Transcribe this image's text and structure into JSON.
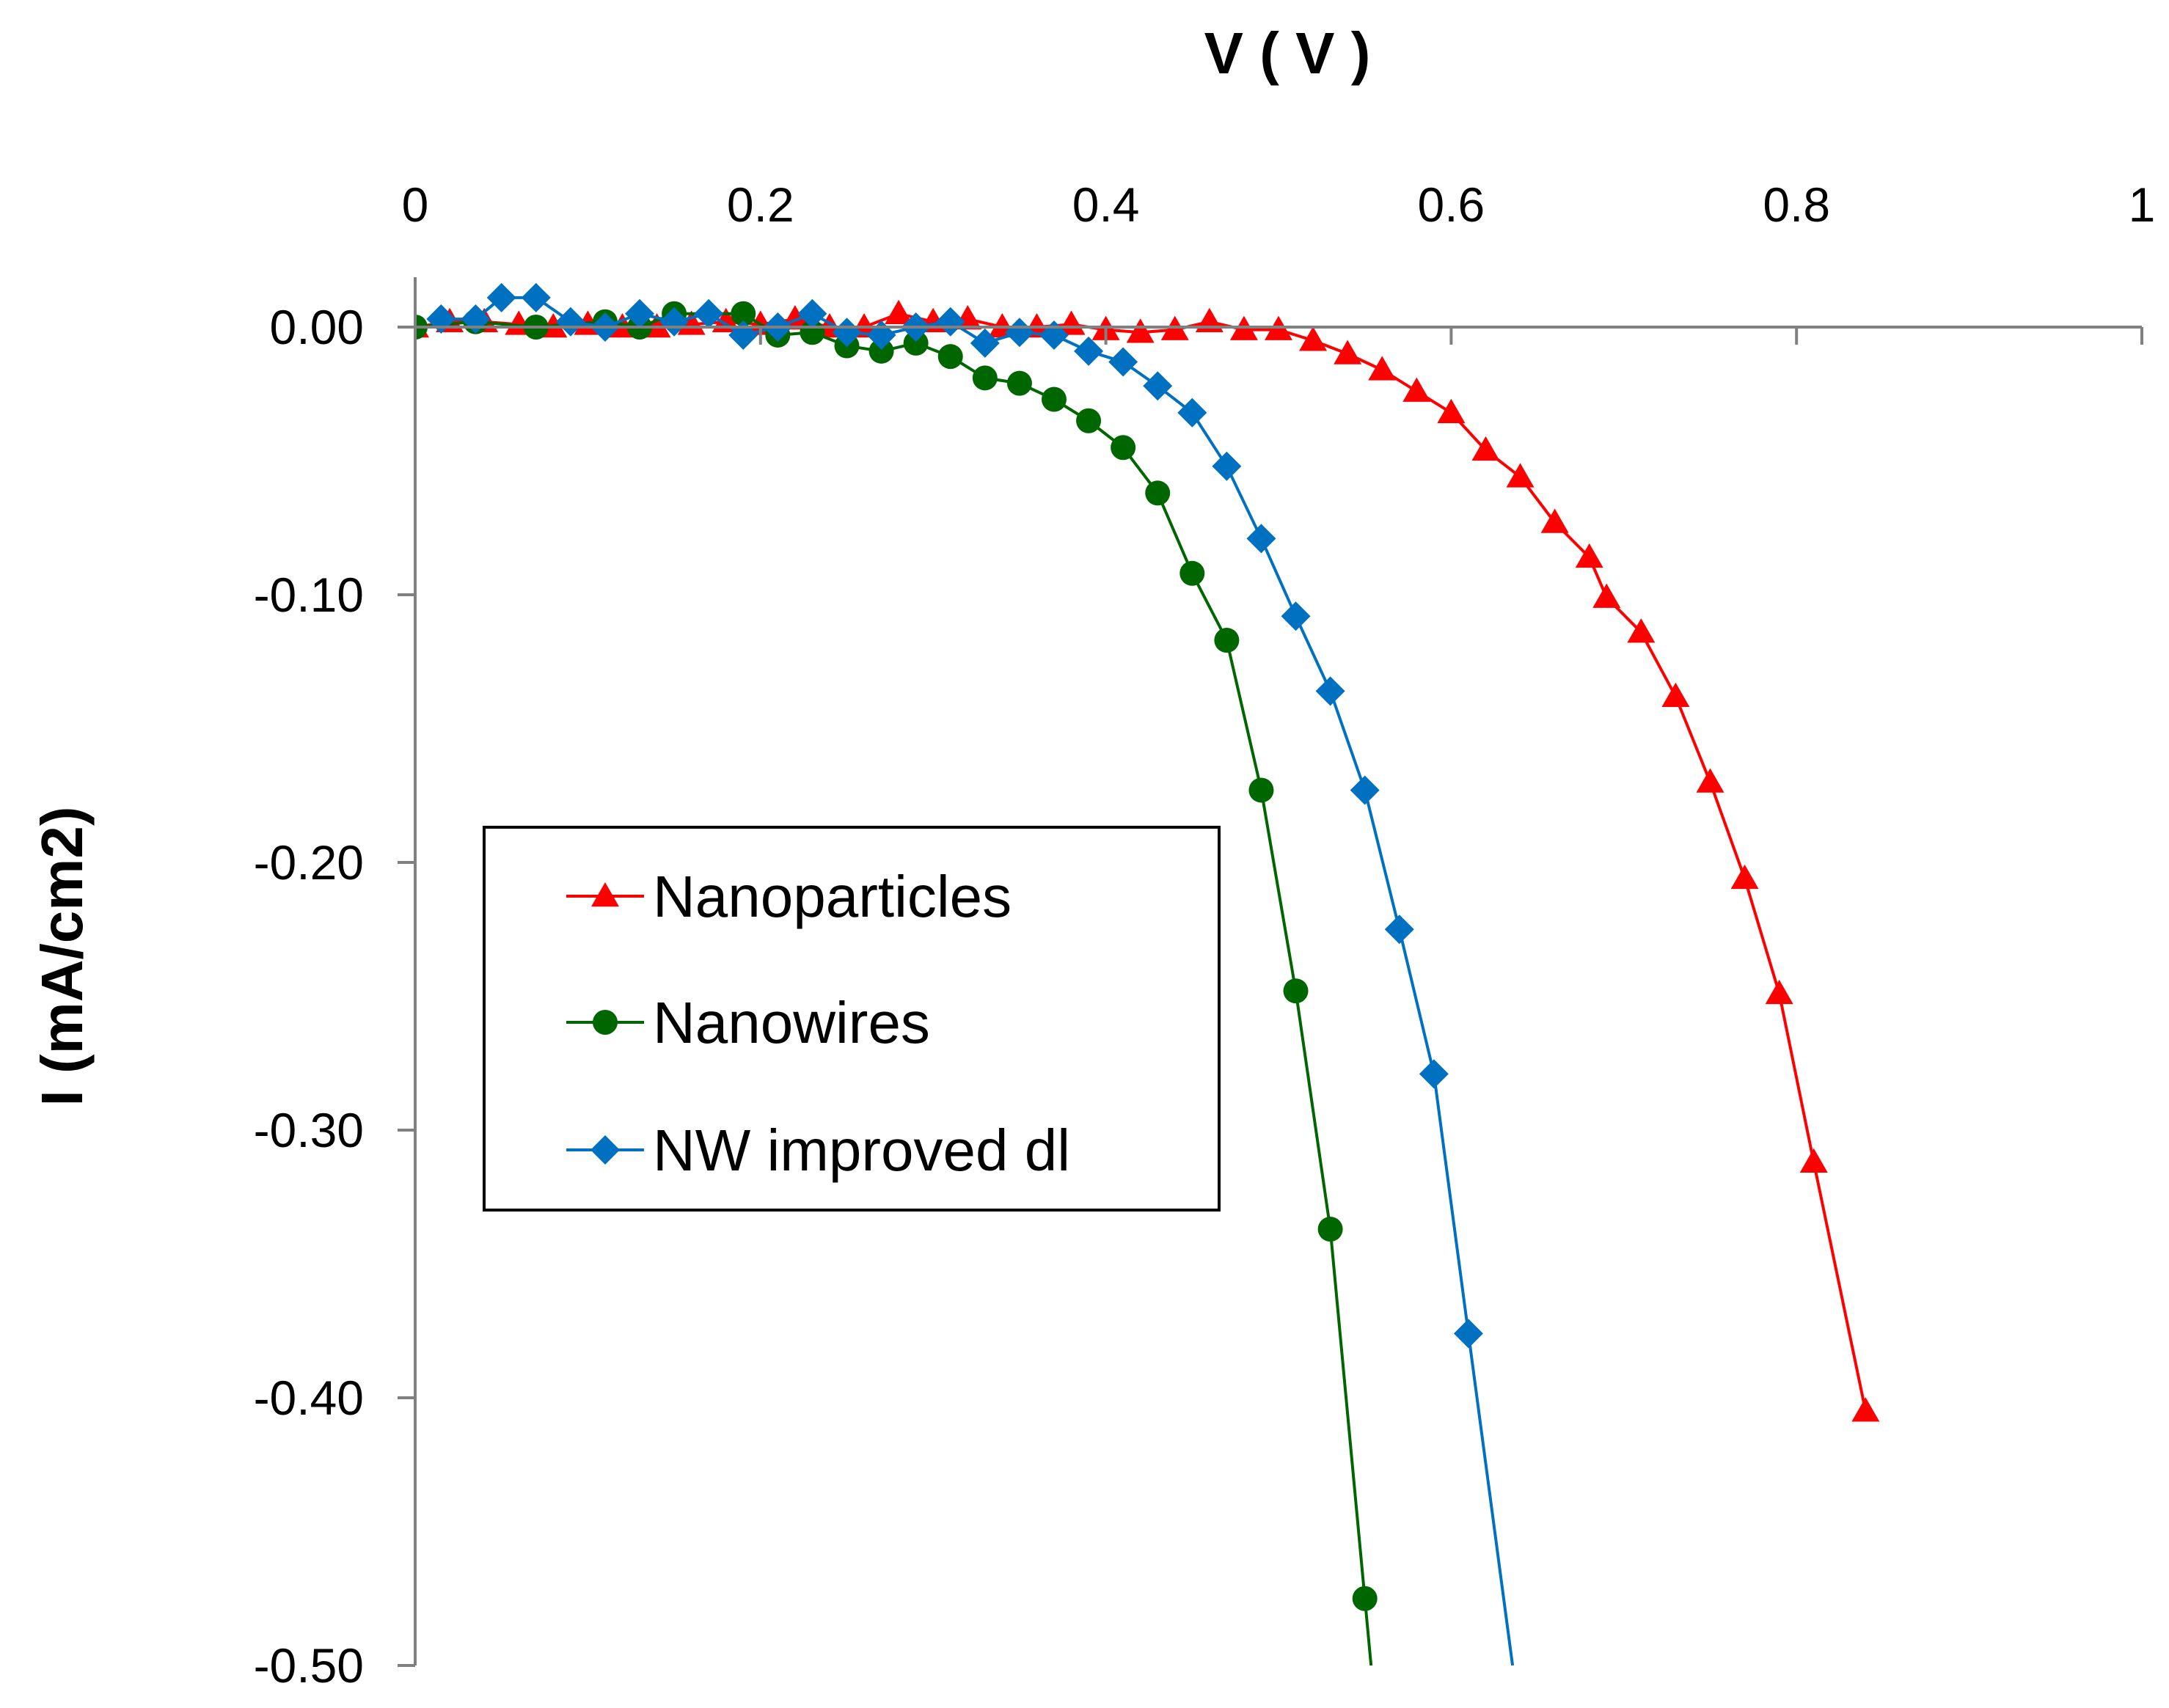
{
  "chart_data": {
    "type": "line",
    "title": "",
    "xlabel": "V ( V )",
    "ylabel": "I (mA/cm2)",
    "xlim": [
      0,
      1
    ],
    "ylim": [
      -0.5,
      0.02
    ],
    "x_ticks": [
      0,
      0.2,
      0.4,
      0.6,
      0.8,
      1
    ],
    "x_tick_labels": [
      "0",
      "0.2",
      "0.4",
      "0.6",
      "0.8",
      "1"
    ],
    "y_ticks": [
      0,
      -0.1,
      -0.2,
      -0.3,
      -0.4,
      -0.5
    ],
    "y_tick_labels": [
      "0.00",
      "-0.10",
      "-0.20",
      "-0.30",
      "-0.40",
      "-0.50"
    ],
    "grid": false,
    "legend": {
      "position": "center-left",
      "entries": [
        "Nanoparticles",
        "Nanowires",
        "NW improved dl"
      ]
    },
    "series": [
      {
        "name": "Nanoparticles",
        "color": "#ff0000",
        "marker": "triangle",
        "points": [
          [
            0.0,
            0.0
          ],
          [
            0.02,
            0.002
          ],
          [
            0.04,
            0.002
          ],
          [
            0.06,
            0.001
          ],
          [
            0.08,
            0.0
          ],
          [
            0.1,
            0.001
          ],
          [
            0.12,
            0.0
          ],
          [
            0.14,
            0.0
          ],
          [
            0.16,
            0.001
          ],
          [
            0.18,
            0.002
          ],
          [
            0.2,
            0.001
          ],
          [
            0.22,
            0.003
          ],
          [
            0.24,
            0.0
          ],
          [
            0.26,
            0.0
          ],
          [
            0.28,
            0.005
          ],
          [
            0.3,
            0.002
          ],
          [
            0.32,
            0.003
          ],
          [
            0.34,
            0.0
          ],
          [
            0.36,
            0.0
          ],
          [
            0.38,
            0.001
          ],
          [
            0.4,
            -0.001
          ],
          [
            0.42,
            -0.002
          ],
          [
            0.44,
            -0.001
          ],
          [
            0.46,
            0.002
          ],
          [
            0.48,
            -0.001
          ],
          [
            0.5,
            -0.001
          ],
          [
            0.52,
            -0.005
          ],
          [
            0.54,
            -0.01
          ],
          [
            0.56,
            -0.016
          ],
          [
            0.58,
            -0.024
          ],
          [
            0.6,
            -0.032
          ],
          [
            0.62,
            -0.046
          ],
          [
            0.64,
            -0.056
          ],
          [
            0.66,
            -0.073
          ],
          [
            0.68,
            -0.086
          ],
          [
            0.69,
            -0.101
          ],
          [
            0.71,
            -0.114
          ],
          [
            0.73,
            -0.138
          ],
          [
            0.75,
            -0.17
          ],
          [
            0.77,
            -0.206
          ],
          [
            0.79,
            -0.249
          ],
          [
            0.81,
            -0.312
          ],
          [
            0.84,
            -0.405
          ]
        ]
      },
      {
        "name": "Nanowires",
        "color": "#006600",
        "marker": "circle",
        "points": [
          [
            0.0,
            0.0
          ],
          [
            0.035,
            0.002
          ],
          [
            0.07,
            0.0
          ],
          [
            0.11,
            0.002
          ],
          [
            0.13,
            0.0
          ],
          [
            0.15,
            0.005
          ],
          [
            0.19,
            0.005
          ],
          [
            0.21,
            -0.003
          ],
          [
            0.23,
            -0.002
          ],
          [
            0.25,
            -0.007
          ],
          [
            0.27,
            -0.009
          ],
          [
            0.29,
            -0.006
          ],
          [
            0.31,
            -0.011
          ],
          [
            0.33,
            -0.019
          ],
          [
            0.35,
            -0.021
          ],
          [
            0.37,
            -0.027
          ],
          [
            0.39,
            -0.035
          ],
          [
            0.41,
            -0.045
          ],
          [
            0.43,
            -0.062
          ],
          [
            0.45,
            -0.092
          ],
          [
            0.47,
            -0.117
          ],
          [
            0.49,
            -0.173
          ],
          [
            0.51,
            -0.248
          ],
          [
            0.53,
            -0.337
          ],
          [
            0.55,
            -0.475
          ]
        ]
      },
      {
        "name": "NW improved dl",
        "color": "#0070c0",
        "marker": "diamond",
        "points": [
          [
            0.015,
            0.003
          ],
          [
            0.035,
            0.003
          ],
          [
            0.05,
            0.011
          ],
          [
            0.07,
            0.011
          ],
          [
            0.09,
            0.002
          ],
          [
            0.11,
            0.0
          ],
          [
            0.13,
            0.005
          ],
          [
            0.15,
            0.002
          ],
          [
            0.17,
            0.005
          ],
          [
            0.19,
            -0.003
          ],
          [
            0.21,
            0.0
          ],
          [
            0.23,
            0.005
          ],
          [
            0.25,
            -0.002
          ],
          [
            0.27,
            -0.003
          ],
          [
            0.29,
            0.0
          ],
          [
            0.31,
            0.002
          ],
          [
            0.33,
            -0.006
          ],
          [
            0.35,
            -0.002
          ],
          [
            0.37,
            -0.003
          ],
          [
            0.39,
            -0.009
          ],
          [
            0.41,
            -0.013
          ],
          [
            0.43,
            -0.022
          ],
          [
            0.45,
            -0.032
          ],
          [
            0.47,
            -0.052
          ],
          [
            0.49,
            -0.079
          ],
          [
            0.51,
            -0.108
          ],
          [
            0.53,
            -0.136
          ],
          [
            0.55,
            -0.173
          ],
          [
            0.57,
            -0.225
          ],
          [
            0.59,
            -0.279
          ],
          [
            0.61,
            -0.376
          ]
        ]
      }
    ]
  }
}
